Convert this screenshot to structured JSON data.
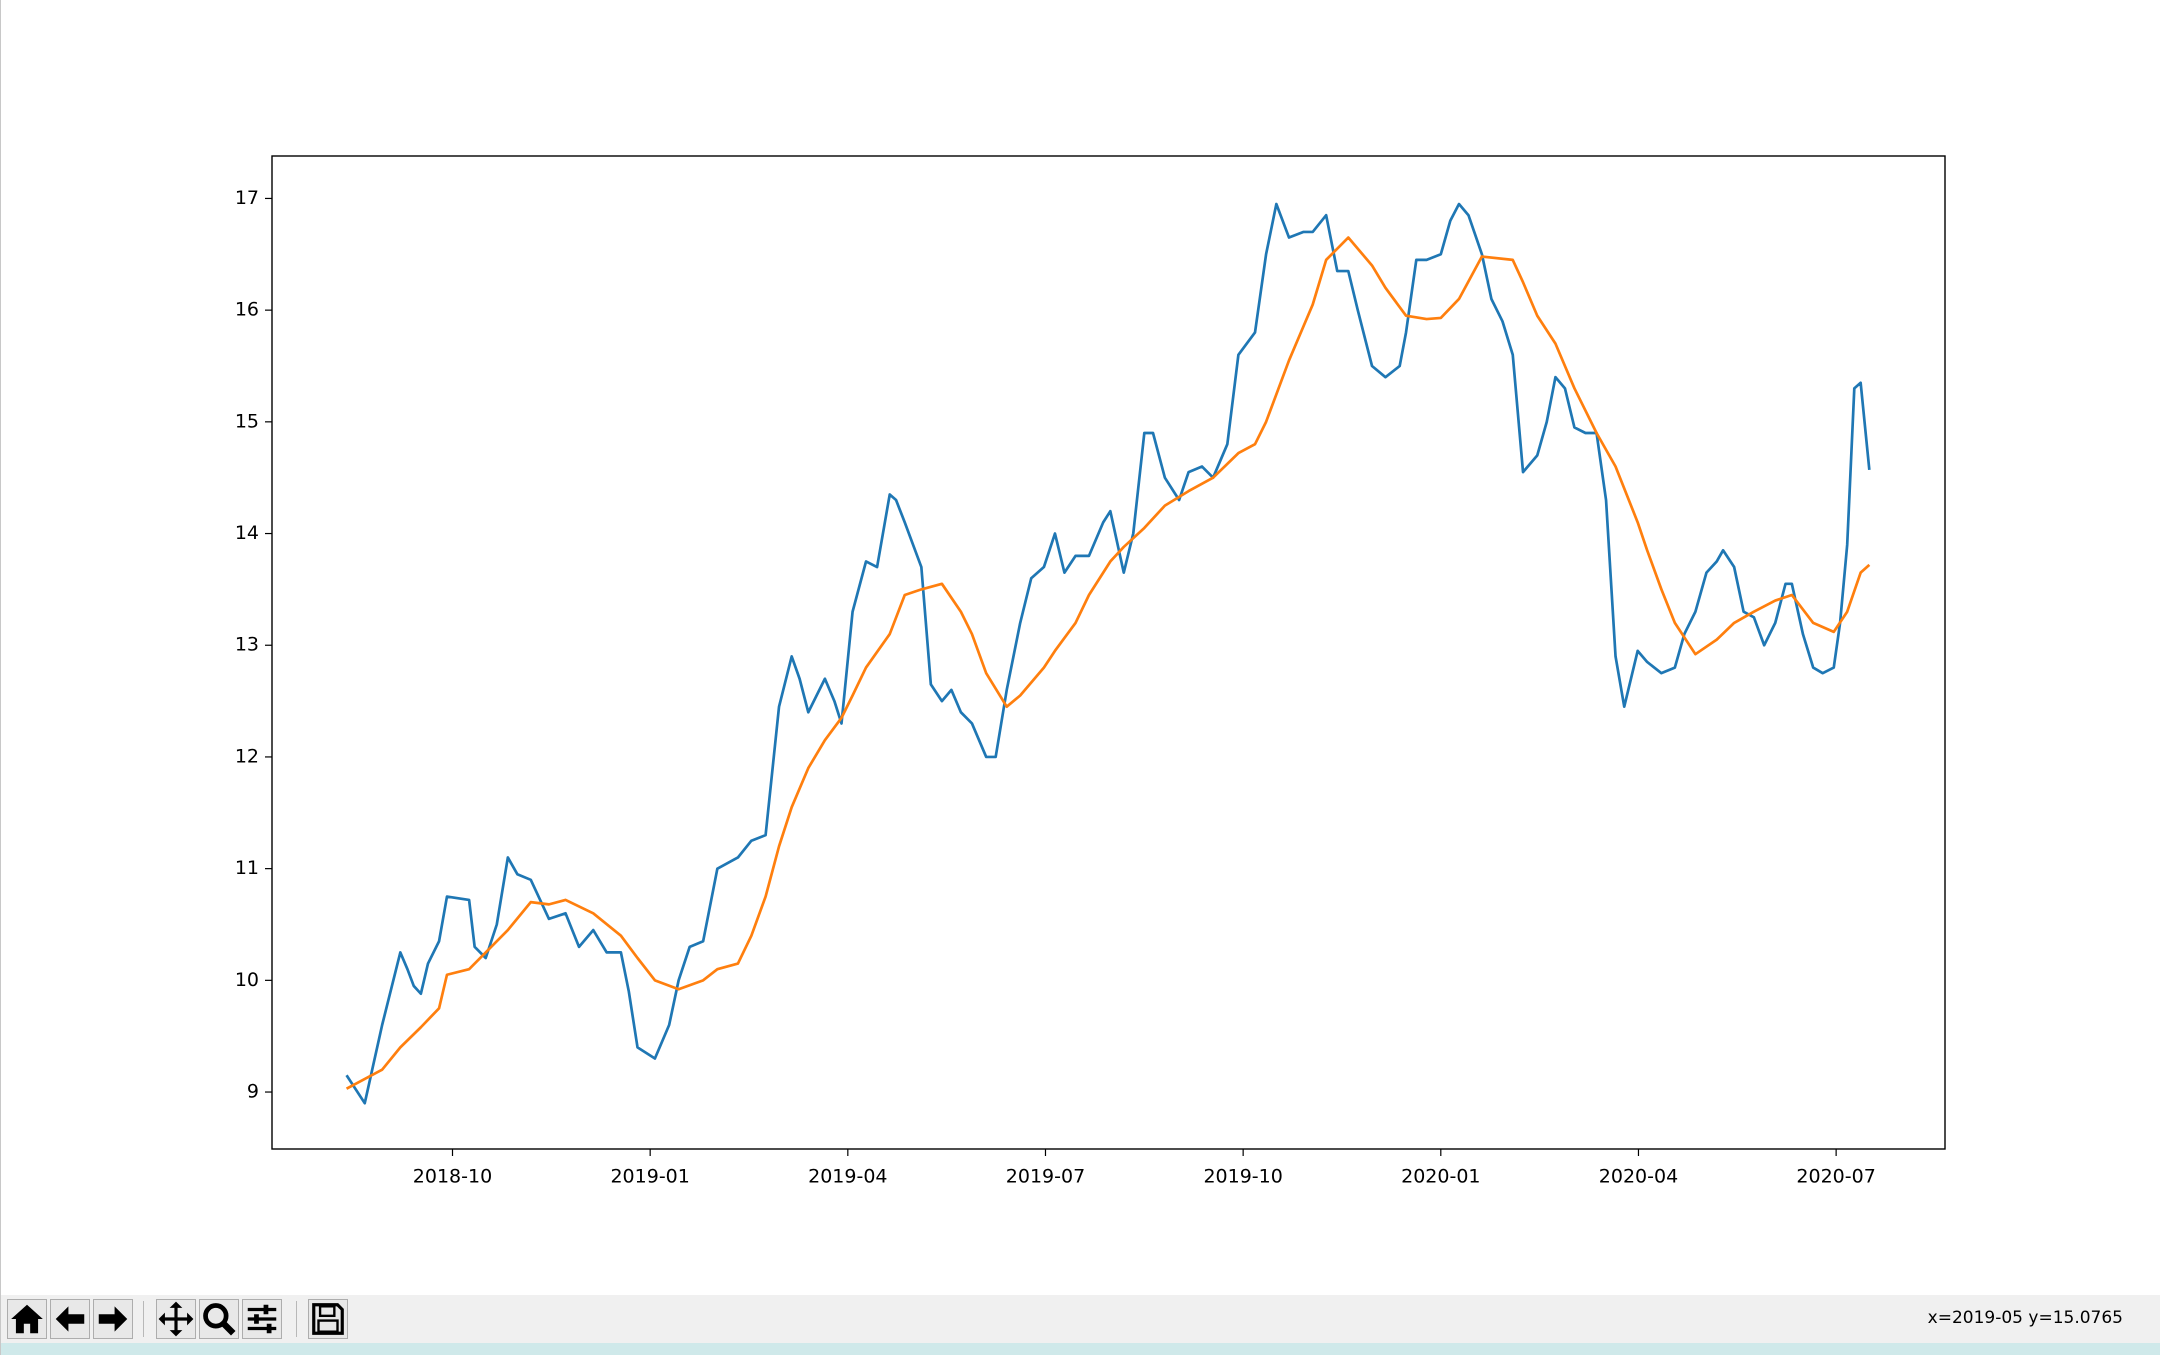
{
  "chart_data": {
    "type": "line",
    "xlim": [
      2018.5217,
      2020.6377
    ],
    "ylim": [
      8.49,
      17.38
    ],
    "xticks": [
      {
        "value": 2018.75,
        "label": "2018-10"
      },
      {
        "value": 2019.0,
        "label": "2019-01"
      },
      {
        "value": 2019.25,
        "label": "2019-04"
      },
      {
        "value": 2019.5,
        "label": "2019-07"
      },
      {
        "value": 2019.75,
        "label": "2019-10"
      },
      {
        "value": 2020.0,
        "label": "2020-01"
      },
      {
        "value": 2020.25,
        "label": "2020-04"
      },
      {
        "value": 2020.5,
        "label": "2020-07"
      }
    ],
    "yticks": [
      9,
      10,
      11,
      12,
      13,
      14,
      15,
      16,
      17
    ],
    "grid": false,
    "series": [
      {
        "color": "#1f77b4",
        "x": [
          2018.616,
          2018.639,
          2018.661,
          2018.684,
          2018.693,
          2018.701,
          2018.71,
          2018.719,
          2018.733,
          2018.743,
          2018.771,
          2018.778,
          2018.792,
          2018.806,
          2018.82,
          2018.832,
          2018.849,
          2018.872,
          2018.893,
          2018.91,
          2018.928,
          2018.945,
          2018.963,
          2018.973,
          2018.984,
          2019.006,
          2019.024,
          2019.036,
          2019.05,
          2019.067,
          2019.085,
          2019.111,
          2019.128,
          2019.146,
          2019.163,
          2019.179,
          2019.189,
          2019.2,
          2019.221,
          2019.233,
          2019.242,
          2019.256,
          2019.273,
          2019.287,
          2019.303,
          2019.311,
          2019.322,
          2019.343,
          2019.355,
          2019.369,
          2019.381,
          2019.393,
          2019.407,
          2019.425,
          2019.437,
          2019.451,
          2019.468,
          2019.482,
          2019.498,
          2019.512,
          2019.524,
          2019.538,
          2019.555,
          2019.573,
          2019.582,
          2019.599,
          2019.611,
          2019.625,
          2019.636,
          2019.651,
          2019.669,
          2019.681,
          2019.698,
          2019.712,
          2019.73,
          2019.744,
          2019.765,
          2019.779,
          2019.792,
          2019.808,
          2019.826,
          2019.838,
          2019.855,
          2019.869,
          2019.883,
          2019.895,
          2019.913,
          2019.93,
          2019.948,
          2019.956,
          2019.969,
          2019.982,
          2020.0,
          2020.012,
          2020.023,
          2020.035,
          2020.052,
          2020.064,
          2020.078,
          2020.091,
          2020.104,
          2020.122,
          2020.134,
          2020.145,
          2020.157,
          2020.169,
          2020.183,
          2020.197,
          2020.209,
          2020.221,
          2020.232,
          2020.249,
          2020.261,
          2020.279,
          2020.296,
          2020.308,
          2020.322,
          2020.336,
          2020.349,
          2020.357,
          2020.371,
          2020.383,
          2020.396,
          2020.409,
          2020.423,
          2020.436,
          2020.444,
          2020.458,
          2020.471,
          2020.483,
          2020.497,
          2020.505,
          2020.514,
          2020.523,
          2020.531,
          2020.542
        ],
        "values": [
          9.15,
          8.9,
          9.6,
          10.25,
          10.1,
          9.95,
          9.88,
          10.15,
          10.35,
          10.75,
          10.72,
          10.3,
          10.2,
          10.5,
          11.1,
          10.95,
          10.9,
          10.55,
          10.6,
          10.3,
          10.45,
          10.25,
          10.25,
          9.9,
          9.4,
          9.3,
          9.6,
          10.0,
          10.3,
          10.35,
          11.0,
          11.1,
          11.25,
          11.3,
          12.45,
          12.9,
          12.7,
          12.4,
          12.7,
          12.5,
          12.3,
          13.3,
          13.75,
          13.7,
          14.35,
          14.3,
          14.1,
          13.7,
          12.65,
          12.5,
          12.6,
          12.4,
          12.3,
          12.0,
          12.0,
          12.6,
          13.2,
          13.6,
          13.7,
          14.0,
          13.65,
          13.8,
          13.8,
          14.1,
          14.2,
          13.65,
          14.0,
          14.9,
          14.9,
          14.5,
          14.3,
          14.55,
          14.6,
          14.5,
          14.8,
          15.6,
          15.8,
          16.5,
          16.95,
          16.65,
          16.7,
          16.7,
          16.85,
          16.35,
          16.35,
          16.0,
          15.5,
          15.4,
          15.5,
          15.8,
          16.45,
          16.45,
          16.5,
          16.8,
          16.95,
          16.85,
          16.5,
          16.1,
          15.9,
          15.6,
          14.55,
          14.7,
          15.0,
          15.4,
          15.3,
          14.95,
          14.9,
          14.9,
          14.3,
          12.9,
          12.45,
          12.95,
          12.85,
          12.75,
          12.8,
          13.1,
          13.3,
          13.65,
          13.75,
          13.85,
          13.7,
          13.3,
          13.25,
          13.0,
          13.2,
          13.55,
          13.55,
          13.1,
          12.8,
          12.75,
          12.8,
          13.2,
          13.9,
          15.3,
          15.35,
          14.57
        ]
      },
      {
        "color": "#ff7f0e",
        "x": [
          2018.616,
          2018.661,
          2018.684,
          2018.71,
          2018.733,
          2018.743,
          2018.771,
          2018.792,
          2018.82,
          2018.849,
          2018.872,
          2018.893,
          2018.928,
          2018.963,
          2018.984,
          2019.006,
          2019.036,
          2019.067,
          2019.085,
          2019.111,
          2019.128,
          2019.146,
          2019.163,
          2019.179,
          2019.2,
          2019.221,
          2019.242,
          2019.256,
          2019.273,
          2019.303,
          2019.322,
          2019.343,
          2019.369,
          2019.393,
          2019.407,
          2019.425,
          2019.451,
          2019.468,
          2019.498,
          2019.512,
          2019.538,
          2019.555,
          2019.582,
          2019.599,
          2019.625,
          2019.651,
          2019.681,
          2019.712,
          2019.744,
          2019.765,
          2019.779,
          2019.808,
          2019.826,
          2019.838,
          2019.855,
          2019.883,
          2019.913,
          2019.93,
          2019.956,
          2019.982,
          2020.0,
          2020.023,
          2020.052,
          2020.091,
          2020.104,
          2020.122,
          2020.145,
          2020.169,
          2020.197,
          2020.221,
          2020.249,
          2020.261,
          2020.279,
          2020.296,
          2020.322,
          2020.349,
          2020.371,
          2020.396,
          2020.423,
          2020.444,
          2020.471,
          2020.497,
          2020.514,
          2020.531,
          2020.542
        ],
        "values": [
          9.03,
          9.2,
          9.4,
          9.58,
          9.75,
          10.05,
          10.1,
          10.25,
          10.45,
          10.7,
          10.68,
          10.72,
          10.6,
          10.4,
          10.2,
          10.0,
          9.92,
          10.0,
          10.1,
          10.15,
          10.4,
          10.75,
          11.2,
          11.55,
          11.9,
          12.15,
          12.35,
          12.55,
          12.8,
          13.1,
          13.45,
          13.5,
          13.55,
          13.3,
          13.1,
          12.75,
          12.45,
          12.55,
          12.8,
          12.95,
          13.2,
          13.45,
          13.75,
          13.88,
          14.05,
          14.25,
          14.38,
          14.5,
          14.72,
          14.8,
          15.0,
          15.55,
          15.85,
          16.05,
          16.45,
          16.65,
          16.4,
          16.2,
          15.95,
          15.92,
          15.93,
          16.1,
          16.48,
          16.45,
          16.25,
          15.95,
          15.7,
          15.3,
          14.9,
          14.6,
          14.1,
          13.85,
          13.5,
          13.2,
          12.92,
          13.05,
          13.2,
          13.3,
          13.4,
          13.45,
          13.2,
          13.12,
          13.3,
          13.65,
          13.72
        ]
      }
    ]
  },
  "toolbar": {
    "status": "x=2019-05 y=15.0765"
  }
}
